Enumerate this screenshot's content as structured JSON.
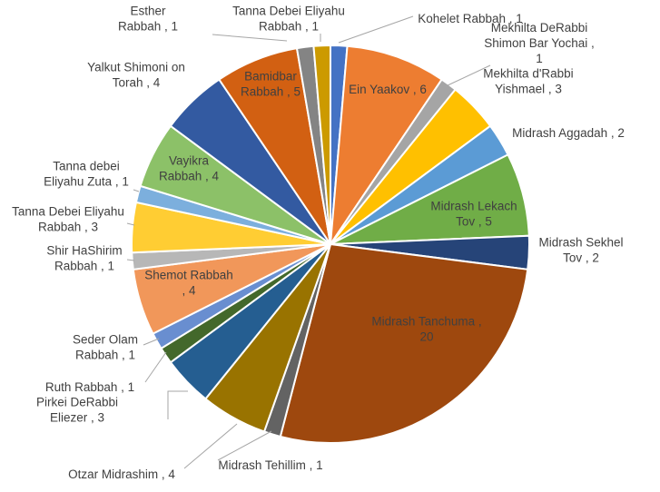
{
  "chart_data": {
    "type": "pie",
    "title": "",
    "legend": "none",
    "slices": [
      {
        "name": "Kohelet Rabbah",
        "value": 1,
        "color": "#4472C4",
        "label": [
          "Kohelet Rabbah , 1"
        ]
      },
      {
        "name": "Ein Yaakov",
        "value": 6,
        "color": "#ED7D31",
        "label": [
          "Ein Yaakov , 6"
        ]
      },
      {
        "name": "Mekhilta DeRabbi Shimon Bar Yochai",
        "value": 1,
        "color": "#A5A5A5",
        "label": [
          "Mekhilta DeRabbi",
          "Shimon  Bar Yochai ,",
          "1"
        ]
      },
      {
        "name": "Mekhilta d'Rabbi Yishmael",
        "value": 3,
        "color": "#FFC000",
        "label": [
          "Mekhilta d'Rabbi",
          "Yishmael , 3"
        ]
      },
      {
        "name": "Midrash Aggadah",
        "value": 2,
        "color": "#5B9BD5",
        "label": [
          "Midrash Aggadah , 2"
        ]
      },
      {
        "name": "Midrash Lekach Tov",
        "value": 5,
        "color": "#70AD47",
        "label": [
          "Midrash Lekach",
          "Tov , 5"
        ]
      },
      {
        "name": "Midrash Sekhel Tov",
        "value": 2,
        "color": "#264478",
        "label": [
          "Midrash Sekhel",
          "Tov , 2"
        ]
      },
      {
        "name": "Midrash Tanchuma",
        "value": 20,
        "color": "#9E480E",
        "label": [
          "Midrash Tanchuma ,",
          "20"
        ]
      },
      {
        "name": "Midrash Tehillim",
        "value": 1,
        "color": "#636363",
        "label": [
          "Midrash Tehillim , 1"
        ]
      },
      {
        "name": "Otzar Midrashim",
        "value": 4,
        "color": "#997300",
        "label": [
          "Otzar Midrashim , 4"
        ]
      },
      {
        "name": "Pirkei DeRabbi Eliezer",
        "value": 3,
        "color": "#255E91",
        "label": [
          "Pirkei DeRabbi",
          "Eliezer , 3"
        ]
      },
      {
        "name": "Ruth Rabbah",
        "value": 1,
        "color": "#43682B",
        "label": [
          "Ruth Rabbah , 1"
        ]
      },
      {
        "name": "Seder Olam Rabbah",
        "value": 1,
        "color": "#698ED0",
        "label": [
          "Seder Olam",
          "Rabbah , 1"
        ]
      },
      {
        "name": "Shemot Rabbah",
        "value": 4,
        "color": "#F1975A",
        "label": [
          "Shemot  Rabbah",
          ", 4"
        ]
      },
      {
        "name": "Shir HaShirim Rabbah",
        "value": 1,
        "color": "#B7B7B7",
        "label": [
          "Shir HaShirim",
          "Rabbah , 1"
        ]
      },
      {
        "name": "Tanna Debei Eliyahu Rabbah",
        "value": 3,
        "color": "#FFCD33",
        "label": [
          "Tanna Debei Eliyahu",
          "Rabbah , 3"
        ]
      },
      {
        "name": "Tanna debei Eliyahu Zuta",
        "value": 1,
        "color": "#7CAFDD",
        "label": [
          "Tanna debei",
          "Eliyahu Zuta , 1"
        ]
      },
      {
        "name": "Vayikra Rabbah",
        "value": 4,
        "color": "#8CC168",
        "label": [
          "Vayikra",
          "Rabbah , 4"
        ]
      },
      {
        "name": "Yalkut Shimoni on Torah",
        "value": 4,
        "color": "#335AA1",
        "label": [
          "Yalkut Shimoni  on",
          "Torah , 4"
        ]
      },
      {
        "name": "Bamidbar Rabbah",
        "value": 5,
        "color": "#D26012",
        "label": [
          "Bamidbar",
          "Rabbah , 5"
        ]
      },
      {
        "name": "Esther Rabbah",
        "value": 1,
        "color": "#848484",
        "label": [
          "Esther",
          "Rabbah , 1"
        ]
      },
      {
        "name": "Tanna Debei Eliyahu Rabbah",
        "value": 1,
        "color": "#CC9A00",
        "label": [
          "Tanna Debei Eliyahu",
          "Rabbah , 1"
        ]
      }
    ]
  }
}
